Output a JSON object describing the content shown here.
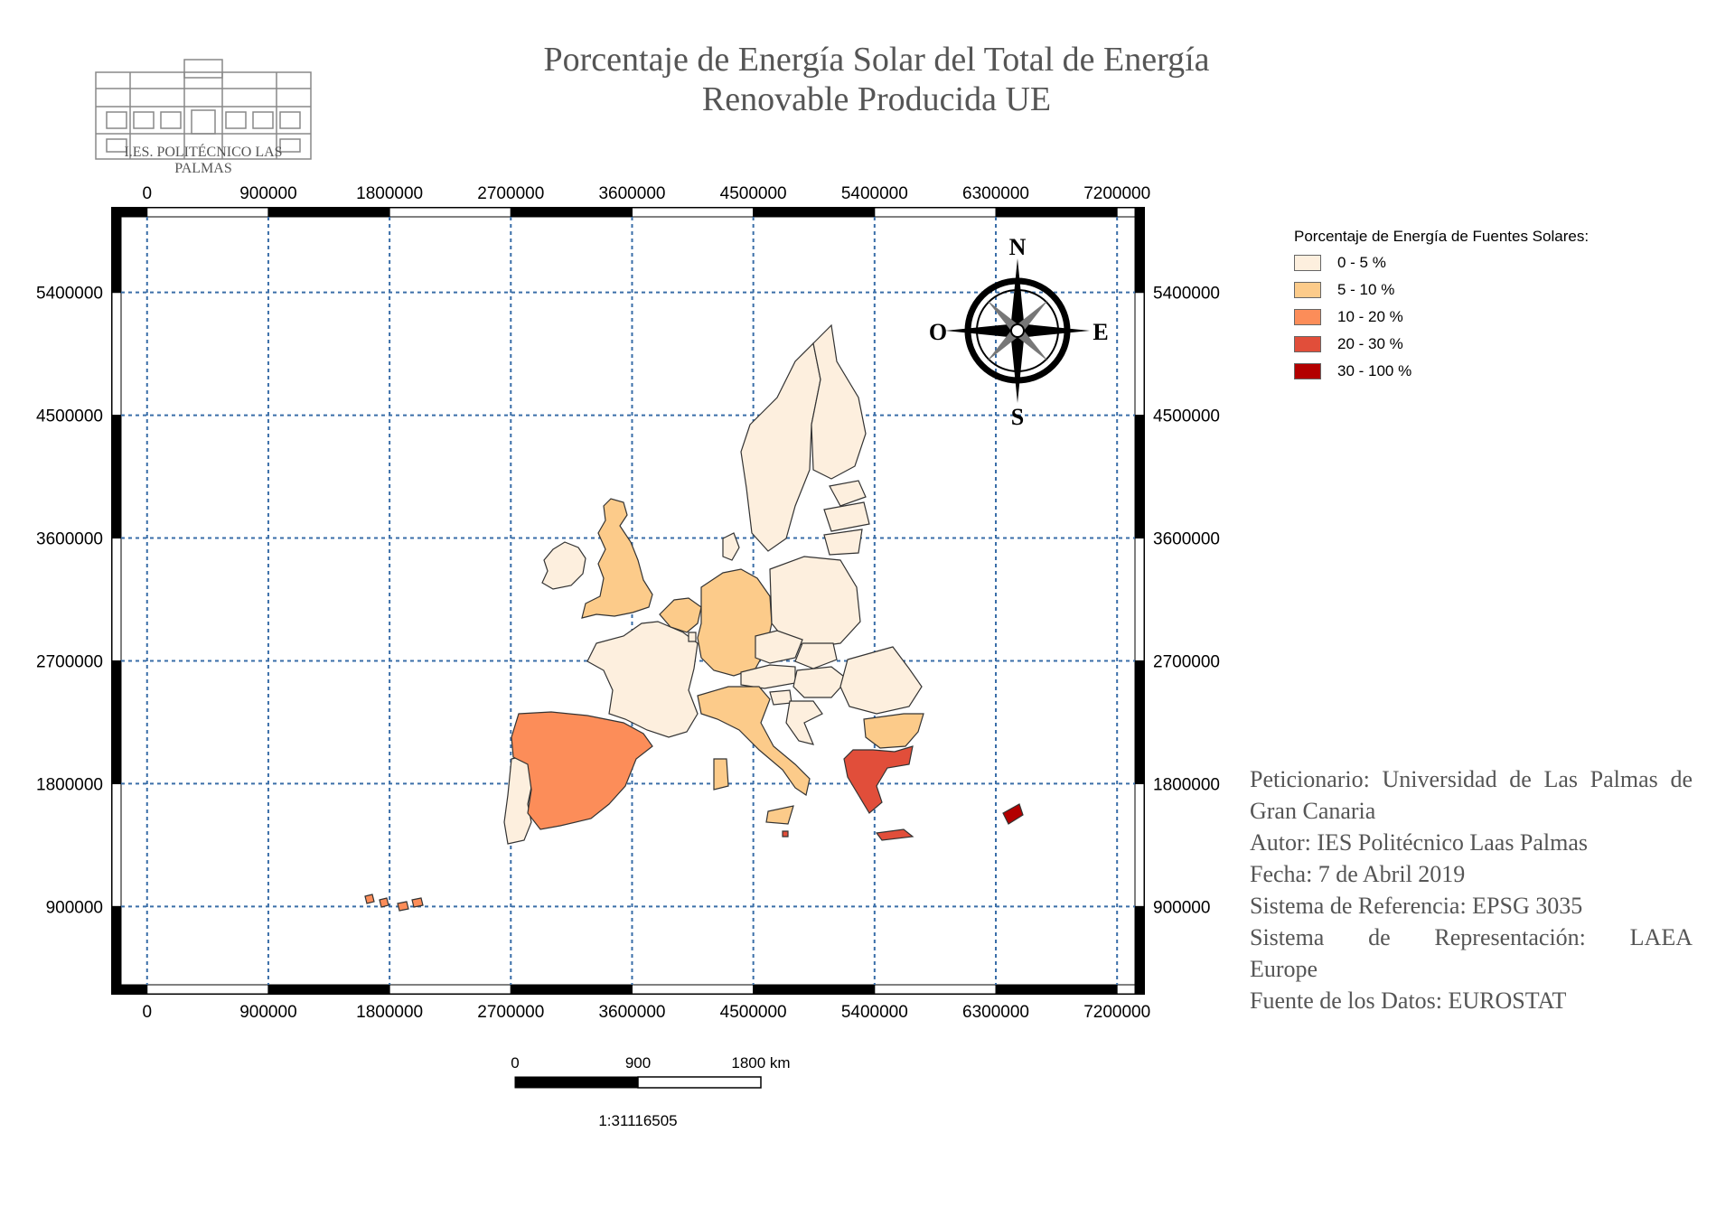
{
  "title": {
    "line1": "Porcentaje de Energía Solar del Total de Energía",
    "line2": "Renovable Producida UE"
  },
  "logo": {
    "text": "I.ES. POLITÉCNICO LAS PALMAS"
  },
  "axes": {
    "x_ticks": [
      "0",
      "900000",
      "1800000",
      "2700000",
      "3600000",
      "4500000",
      "5400000",
      "6300000",
      "7200000"
    ],
    "x_values": [
      0,
      900000,
      1800000,
      2700000,
      3600000,
      4500000,
      5400000,
      6300000,
      7200000
    ],
    "y_ticks": [
      "5400000",
      "4500000",
      "3600000",
      "2700000",
      "1800000",
      "900000"
    ],
    "y_values": [
      5400000,
      4500000,
      3600000,
      2700000,
      1800000,
      900000
    ],
    "x_range": [
      -260000,
      7400000
    ],
    "y_range": [
      260000,
      6020000
    ],
    "grid": "dashed"
  },
  "legend": {
    "title": "Porcentaje de Energía de Fuentes Solares:",
    "items": [
      {
        "label": "0 - 5  %",
        "color": "#fdefde"
      },
      {
        "label": "5 - 10 %",
        "color": "#fccb8a"
      },
      {
        "label": "10 - 20 %",
        "color": "#fc8d59"
      },
      {
        "label": "20 - 30 %",
        "color": "#e14e3a"
      },
      {
        "label": "30 - 100 %",
        "color": "#b30000"
      }
    ]
  },
  "compass": {
    "n": "N",
    "s": "S",
    "e": "E",
    "w": "O"
  },
  "scale_bar": {
    "labels": [
      "0",
      "900",
      "1800 km"
    ],
    "ratio": "1:31116505"
  },
  "info": {
    "peticionario": "Peticionario: Universidad de Las Palmas de Gran Canaria",
    "autor": "Autor: IES Politécnico Laas Palmas",
    "fecha": "Fecha: 7 de Abril 2019",
    "referencia": "Sistema de Referencia: EPSG 3035",
    "representacion_a": "Sistema de Representación: LAEA",
    "representacion_b": "Europe",
    "fuente": "Fuente de los Datos: EUROSTAT"
  },
  "colors": {
    "grid": "#3a6ea8",
    "border": "#000000",
    "outline": "#333333"
  },
  "countries": [
    {
      "name": "Finland",
      "class": 0
    },
    {
      "name": "Sweden",
      "class": 0
    },
    {
      "name": "Estonia",
      "class": 0
    },
    {
      "name": "Latvia",
      "class": 0
    },
    {
      "name": "Lithuania",
      "class": 0
    },
    {
      "name": "Denmark",
      "class": 0
    },
    {
      "name": "Poland",
      "class": 0
    },
    {
      "name": "Czechia",
      "class": 0
    },
    {
      "name": "Slovakia",
      "class": 0
    },
    {
      "name": "Hungary",
      "class": 0
    },
    {
      "name": "Austria",
      "class": 0
    },
    {
      "name": "Slovenia",
      "class": 0
    },
    {
      "name": "Croatia",
      "class": 0
    },
    {
      "name": "Romania",
      "class": 0
    },
    {
      "name": "France",
      "class": 0
    },
    {
      "name": "Ireland",
      "class": 0
    },
    {
      "name": "Portugal",
      "class": 0
    },
    {
      "name": "Luxembourg",
      "class": 0
    },
    {
      "name": "United Kingdom",
      "class": 1
    },
    {
      "name": "Germany",
      "class": 1
    },
    {
      "name": "Belgium",
      "class": 1
    },
    {
      "name": "Netherlands",
      "class": 1
    },
    {
      "name": "Italy",
      "class": 1
    },
    {
      "name": "Bulgaria",
      "class": 1
    },
    {
      "name": "Spain",
      "class": 2
    },
    {
      "name": "Greece",
      "class": 3
    },
    {
      "name": "Malta",
      "class": 3
    },
    {
      "name": "Cyprus",
      "class": 4
    }
  ]
}
